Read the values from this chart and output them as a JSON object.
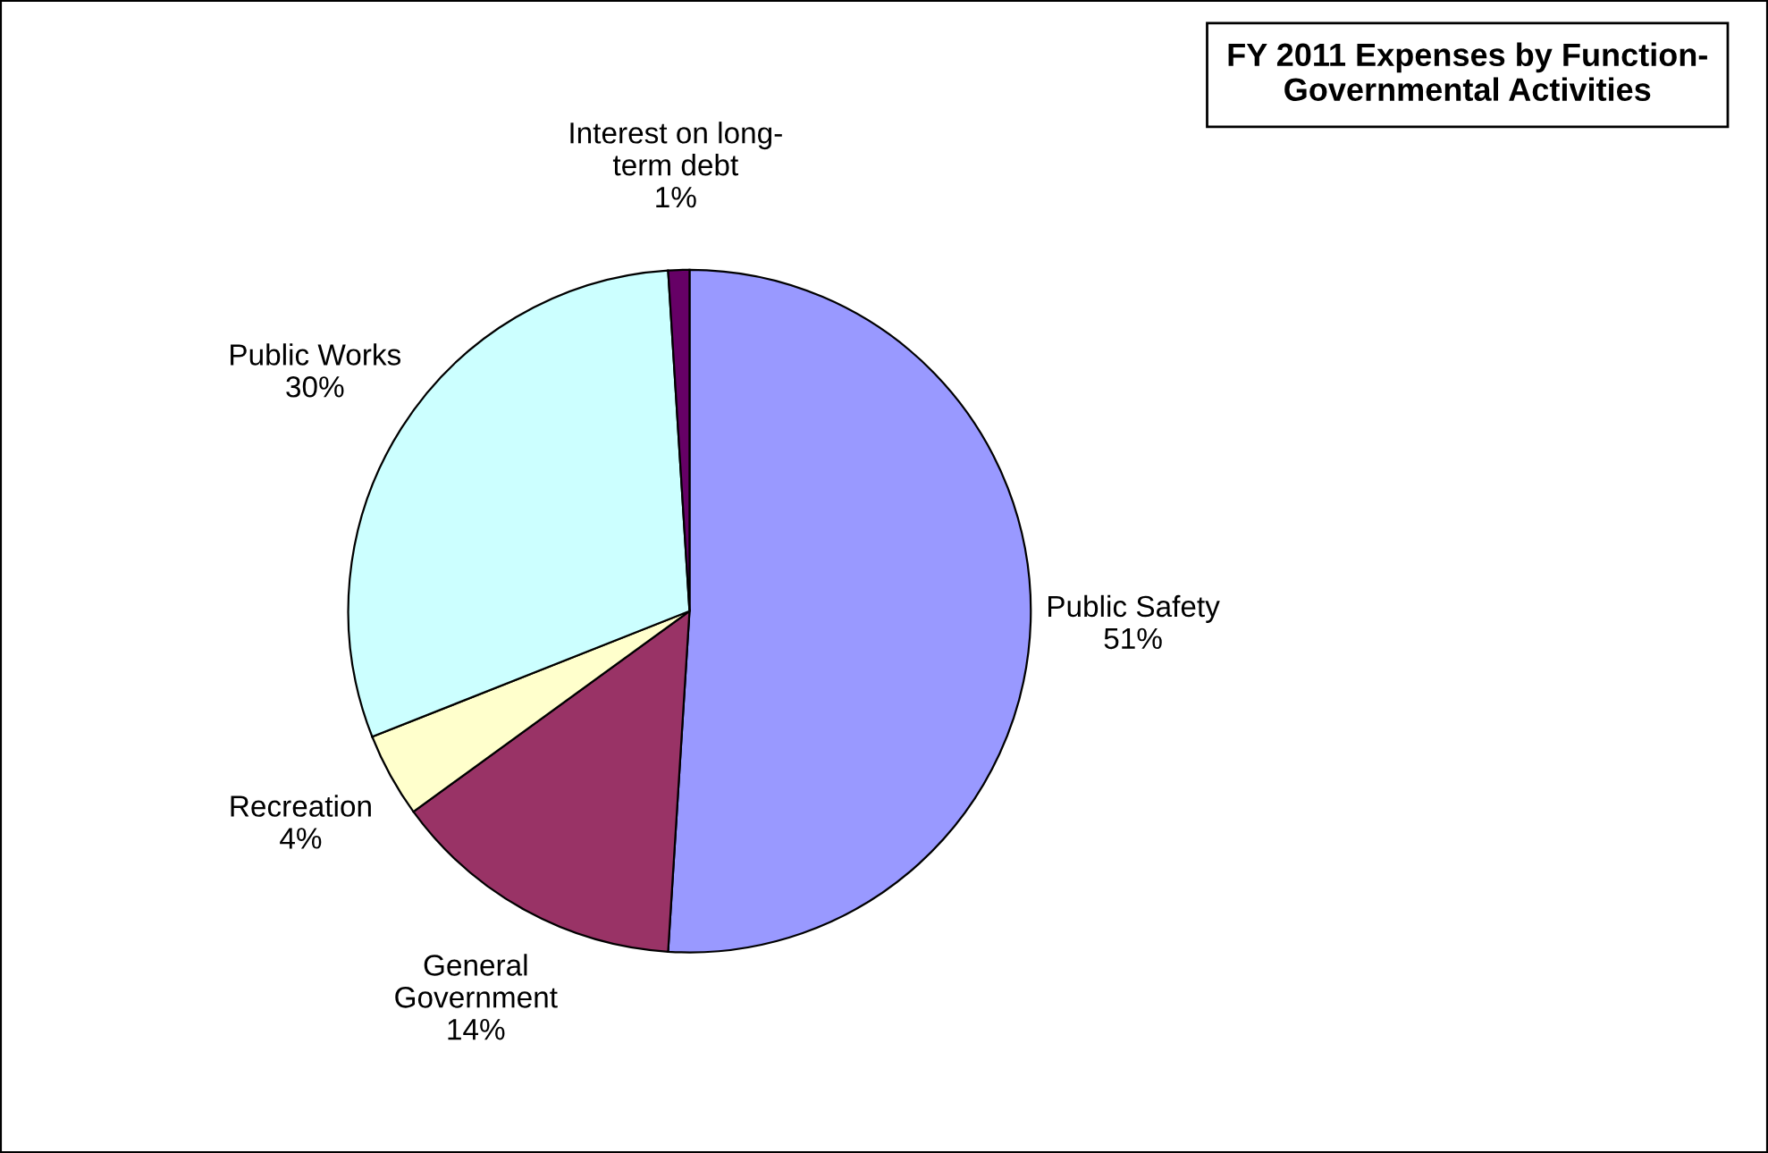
{
  "chart_data": {
    "type": "pie",
    "title": "FY 2011 Expenses by Function-\nGovernmental Activities",
    "categories": [
      "Public Safety",
      "General\nGovernment",
      "Recreation",
      "Public Works",
      "Interest on long-\nterm debt"
    ],
    "values": [
      51,
      14,
      4,
      30,
      1
    ],
    "value_labels": [
      "51%",
      "14%",
      "4%",
      "30%",
      "1%"
    ],
    "colors": [
      "#9999ff",
      "#993366",
      "#ffffcc",
      "#ccffff",
      "#660066"
    ],
    "legend": false
  }
}
